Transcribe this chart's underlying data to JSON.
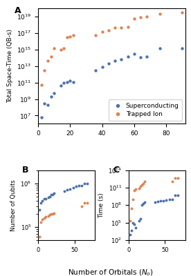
{
  "panel_A": {
    "title": "A",
    "ylabel": "Total Space-Time (QB-s)",
    "xlim": [
      0,
      92
    ],
    "ylim": [
      1000000.0,
      1e+20
    ],
    "xticks": [
      0,
      20,
      40,
      60,
      80
    ],
    "blue_x": [
      2,
      4,
      6,
      8,
      10,
      14,
      16,
      18,
      20,
      22,
      36,
      40,
      44,
      48,
      52,
      56,
      60,
      64,
      68,
      76,
      90
    ],
    "blue_y": [
      6000000.0,
      300000000.0,
      200000000.0,
      2000000000.0,
      5000000000.0,
      40000000000.0,
      90000000000.0,
      120000000000.0,
      150000000000.0,
      120000000000.0,
      3000000000000.0,
      8000000000000.0,
      20000000000000.0,
      40000000000000.0,
      60000000000000.0,
      150000000000000.0,
      300000000000000.0,
      120000000000000.0,
      150000000000000.0,
      1500000000000000.0,
      1500000000000000.0
    ],
    "orange_x": [
      2,
      4,
      6,
      8,
      10,
      14,
      16,
      18,
      20,
      22,
      36,
      40,
      44,
      48,
      52,
      56,
      60,
      64,
      68,
      76,
      90
    ],
    "orange_y": [
      50000000000.0,
      3000000000000.0,
      40000000000000.0,
      150000000000000.0,
      1500000000000000.0,
      1000000000000000.0,
      1500000000000000.0,
      3e+16,
      4e+16,
      6e+16,
      5e+16,
      1.5e+17,
      2e+17,
      5e+17,
      5e+17,
      6e+17,
      6e+18,
      8e+18,
      1e+19,
      2e+19,
      3e+19
    ]
  },
  "panel_B": {
    "title": "B",
    "ylabel": "Number of Qubits",
    "xlim": [
      0,
      78
    ],
    "ylim": [
      50000.0,
      2000000.0
    ],
    "xticks": [
      0,
      50
    ],
    "blue_x": [
      2,
      4,
      6,
      8,
      10,
      14,
      16,
      18,
      20,
      22,
      36,
      40,
      44,
      48,
      52,
      56,
      60,
      64,
      68
    ],
    "blue_y": [
      250000.0,
      350000.0,
      400000.0,
      450000.0,
      450000.0,
      480000.0,
      500000.0,
      550000.0,
      550000.0,
      600000.0,
      650000.0,
      700000.0,
      750000.0,
      800000.0,
      850000.0,
      900000.0,
      900000.0,
      1000000.0,
      1000000.0
    ],
    "orange_x": [
      2,
      4,
      6,
      8,
      10,
      14,
      16,
      18,
      20,
      22,
      60,
      64,
      68
    ],
    "orange_y": [
      60000.0,
      130000.0,
      150000.0,
      160000.0,
      170000.0,
      180000.0,
      190000.0,
      200000.0,
      200000.0,
      210000.0,
      300000.0,
      350000.0,
      350000.0
    ]
  },
  "panel_C": {
    "title": "C",
    "ylabel": "Time (s)",
    "xlim": [
      0,
      78
    ],
    "ylim": [
      100.0,
      100000000000000.0
    ],
    "xticks": [
      0,
      50
    ],
    "blue_x": [
      2,
      4,
      6,
      8,
      10,
      14,
      16,
      18,
      20,
      22,
      36,
      40,
      44,
      48,
      52,
      56,
      60,
      64,
      68
    ],
    "blue_y": [
      1000.0,
      5000.0,
      80000.0,
      50000.0,
      15000.0,
      200000.0,
      500000.0,
      100000000.0,
      200000000.0,
      300000000.0,
      300000000.0,
      400000000.0,
      500000000.0,
      600000000.0,
      700000000.0,
      1000000000.0,
      1000000000.0,
      5000000000.0,
      5000000000.0
    ],
    "orange_x": [
      2,
      4,
      6,
      8,
      10,
      14,
      16,
      18,
      20,
      22,
      60,
      64,
      68
    ],
    "orange_y": [
      200000.0,
      30000000.0,
      1000000000.0,
      30000000000.0,
      50000000000.0,
      80000000000.0,
      150000000000.0,
      300000000000.0,
      500000000000.0,
      1000000000000.0,
      1000000000000.0,
      5000000000000.0,
      5000000000000.0
    ]
  },
  "legend": {
    "blue_label": "Superconducting",
    "orange_label": "Trapped Ion",
    "blue_color": "#4C72B0",
    "orange_color": "#DD8452"
  },
  "shared_xlabel": "Number of Orbitals ($N_o$)",
  "background_color": "#ffffff"
}
